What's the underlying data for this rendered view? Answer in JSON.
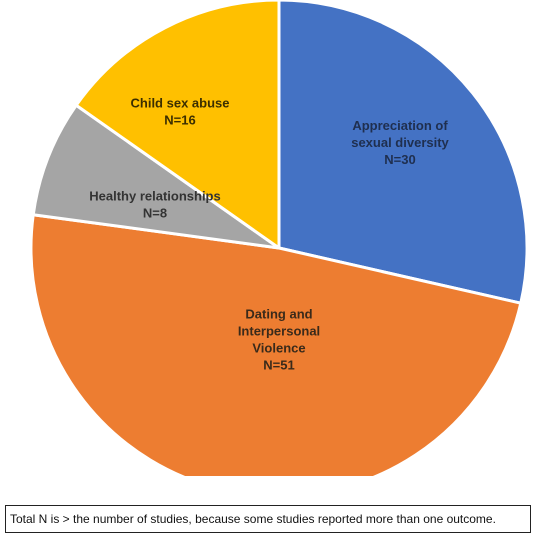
{
  "chart_data": {
    "type": "pie",
    "title": "",
    "start_angle_deg": 0,
    "direction": "clockwise",
    "slices": [
      {
        "lines": [
          "Appreciation of",
          "sexual diversity",
          "N=30"
        ],
        "value": 30,
        "color": "#4472C4",
        "label_color": "#1f2f4f"
      },
      {
        "lines": [
          "Dating and",
          "Interpersonal",
          "Violence",
          "N=51"
        ],
        "value": 51,
        "color": "#ED7D31",
        "label_color": "#3a2a1a"
      },
      {
        "lines": [
          "Healthy relationships",
          "N=8"
        ],
        "value": 8,
        "color": "#A5A5A5",
        "label_color": "#333333"
      },
      {
        "lines": [
          "Child sex abuse",
          "N=16"
        ],
        "value": 16,
        "color": "#FFC000",
        "label_color": "#3b2e00"
      }
    ]
  },
  "footnote": "Total N is > the number of studies, because some studies reported more than one outcome."
}
